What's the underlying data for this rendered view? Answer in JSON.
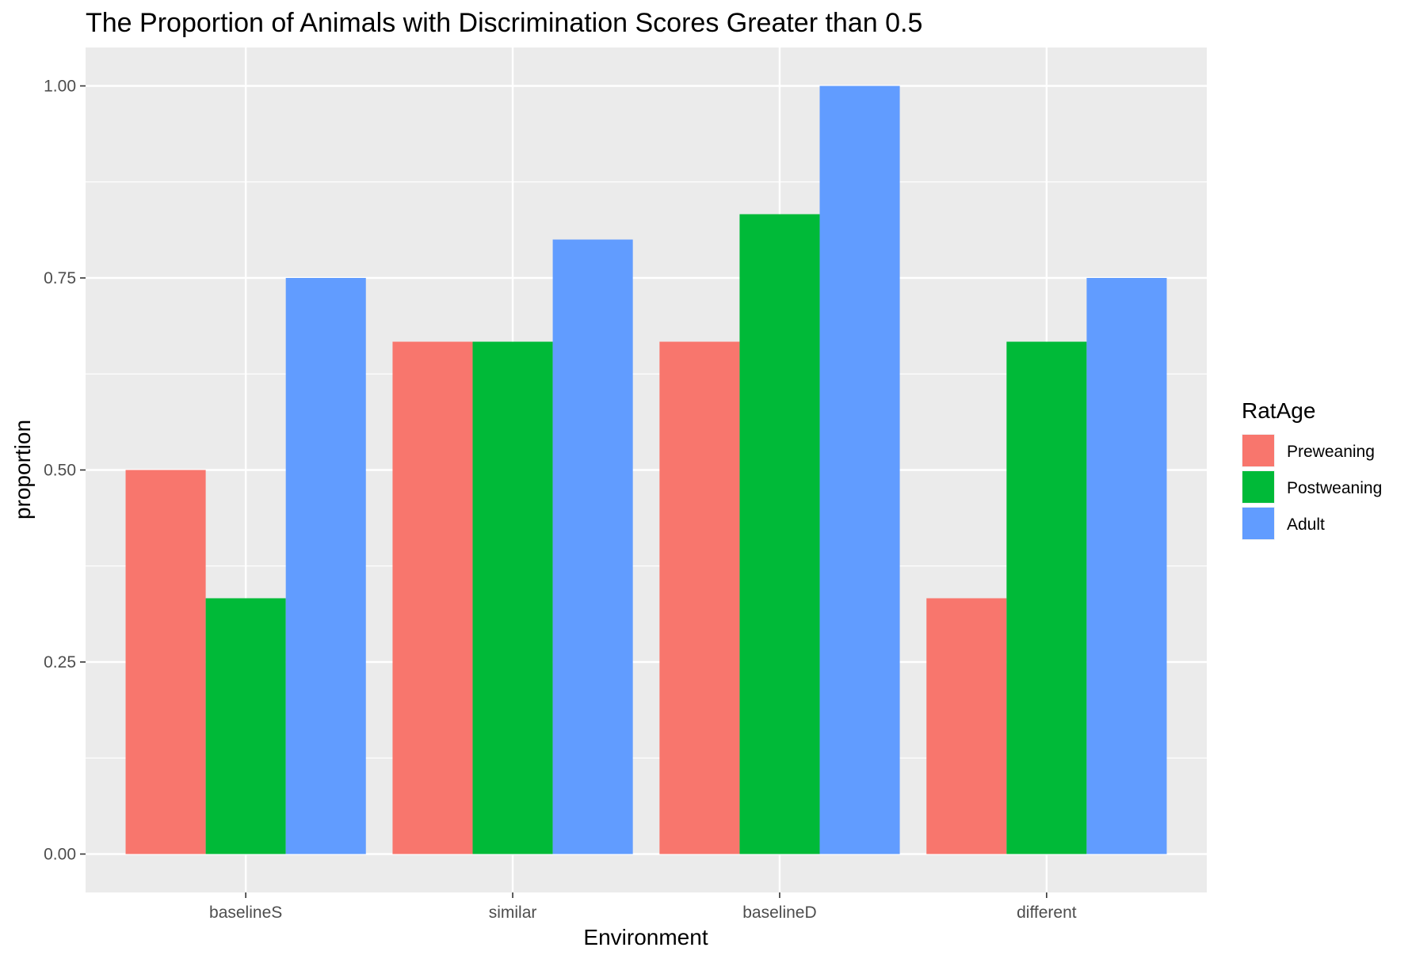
{
  "chart_data": {
    "type": "bar",
    "title": "The Proportion of Animals with Discrimination Scores Greater than 0.5",
    "xlabel": "Environment",
    "ylabel": "proportion",
    "categories": [
      "baselineS",
      "similar",
      "baselineD",
      "different"
    ],
    "series": [
      {
        "name": "Preweaning",
        "color": "#f8766d",
        "values": [
          0.5,
          0.667,
          0.667,
          0.333
        ]
      },
      {
        "name": "Postweaning",
        "color": "#00ba38",
        "values": [
          0.333,
          0.667,
          0.833,
          0.667
        ]
      },
      {
        "name": "Adult",
        "color": "#619cff",
        "values": [
          0.75,
          0.8,
          1.0,
          0.75
        ]
      }
    ],
    "ylim": [
      -0.05,
      1.05
    ],
    "yticks": [
      0,
      0.25,
      0.5,
      0.75,
      1.0
    ],
    "ytick_labels": [
      "0.00",
      "0.25",
      "0.50",
      "0.75",
      "1.00"
    ],
    "grid": true,
    "panel_background": "#ebebeb",
    "legend": {
      "title": "RatAge",
      "position": "right"
    }
  }
}
